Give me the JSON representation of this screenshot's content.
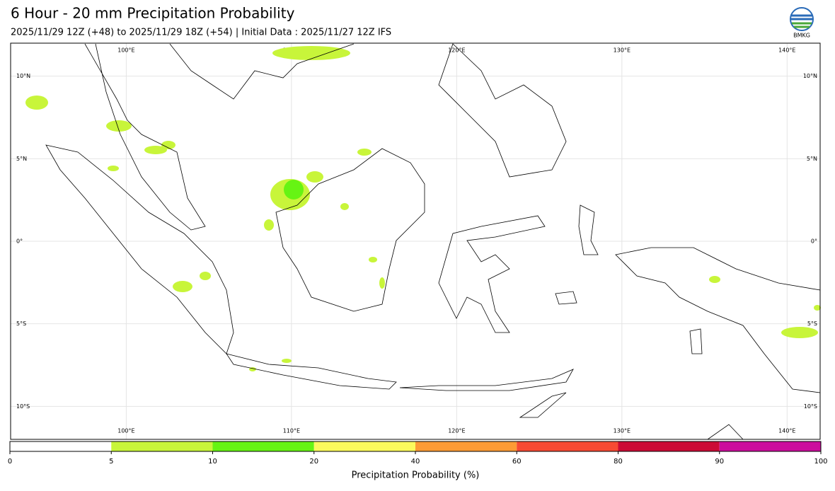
{
  "header": {
    "title": "6 Hour - 20 mm Precipitation Probability",
    "subtitle": "2025/11/29 12Z (+48) to 2025/11/29 18Z (+54) | Initial Data : 2025/11/27 12Z IFS",
    "logo_text": "BMKG"
  },
  "map": {
    "xlim": [
      93,
      142
    ],
    "ylim": [
      -12,
      12
    ],
    "xticks": [
      {
        "value": 100,
        "label": "100°E"
      },
      {
        "value": 110,
        "label": "110°E"
      },
      {
        "value": 120,
        "label": "120°E"
      },
      {
        "value": 130,
        "label": "130°E"
      },
      {
        "value": 140,
        "label": "140°E"
      }
    ],
    "yticks": [
      {
        "value": 10,
        "label": "10°N"
      },
      {
        "value": 5,
        "label": "5°N"
      },
      {
        "value": 0,
        "label": "0°"
      },
      {
        "value": -5,
        "label": "5°S"
      },
      {
        "value": -10,
        "label": "10°S"
      }
    ],
    "grid": true
  },
  "colorbar": {
    "ticks": [
      0,
      5,
      10,
      20,
      40,
      60,
      80,
      90,
      100
    ],
    "colors": [
      "#ffffff",
      "#c8f53a",
      "#66f413",
      "#fcfa5c",
      "#fd9b35",
      "#f74a33",
      "#cc0b35",
      "#cc0d9d"
    ],
    "label": "Precipitation Probability (%)"
  }
}
